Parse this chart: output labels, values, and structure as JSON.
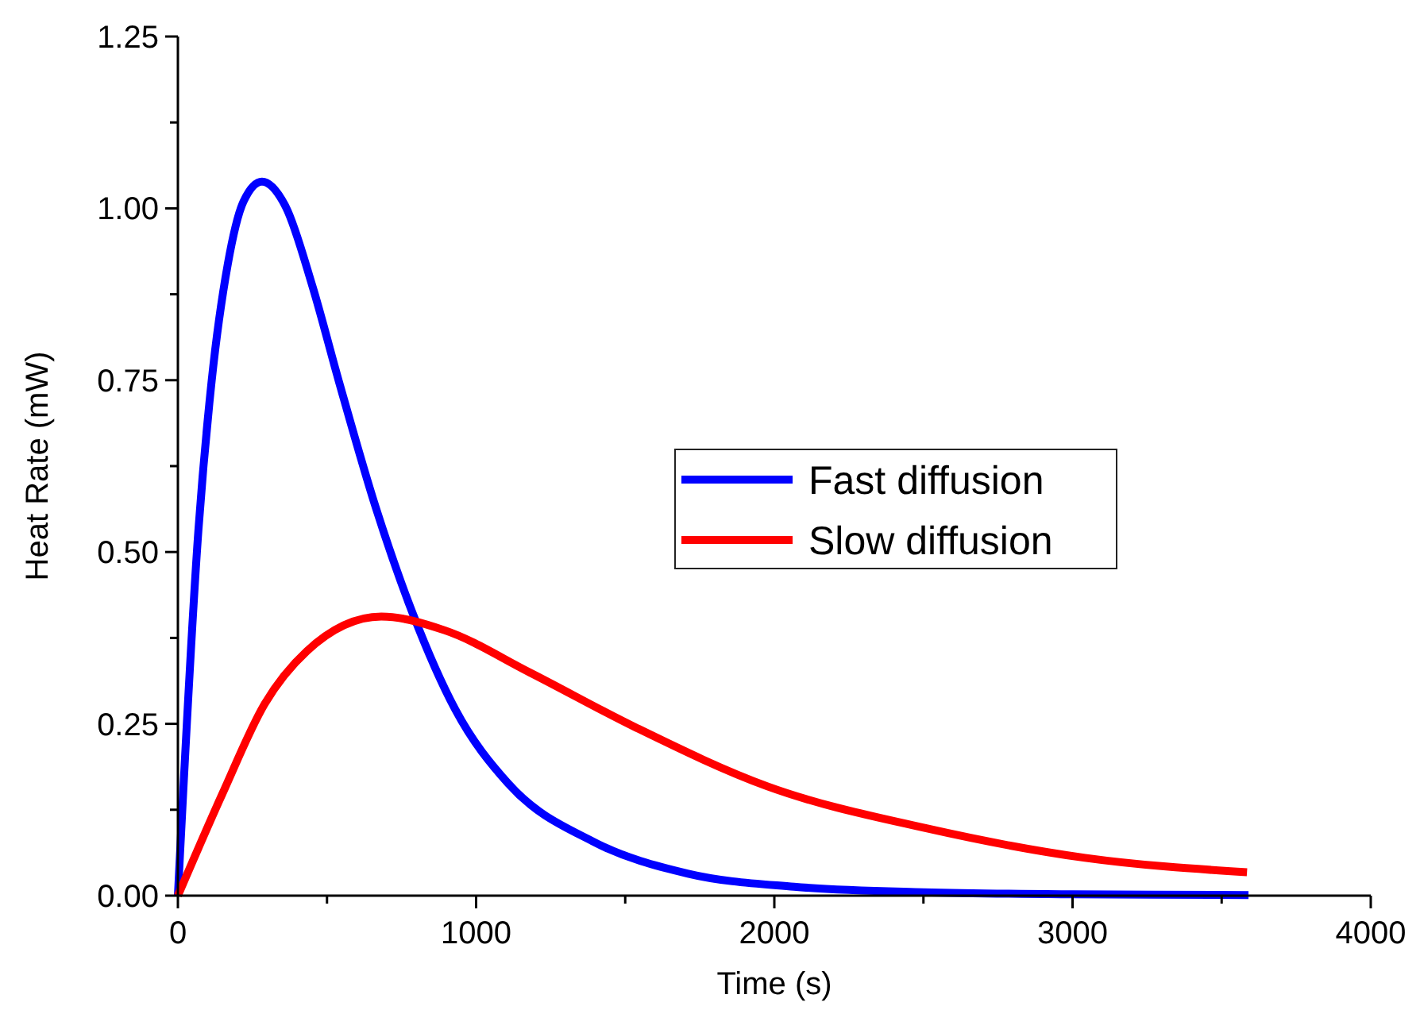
{
  "chart_data": {
    "type": "line",
    "xlabel": "Time (s)",
    "ylabel": "Heat Rate (mW)",
    "xlim": [
      0,
      4000
    ],
    "ylim": [
      0,
      1.25
    ],
    "xticks": [
      0,
      {
        "value": 500,
        "label": null
      },
      1000,
      {
        "value": 1500,
        "label": null
      },
      2000,
      {
        "value": 2500,
        "label": null
      },
      3000,
      {
        "value": 3500,
        "label": null
      },
      4000
    ],
    "yticks": [
      "0.00",
      {
        "value": 0.125,
        "label": null
      },
      0.25,
      {
        "value": 0.375,
        "label": null
      },
      "0.50",
      {
        "value": 0.625,
        "label": null
      },
      0.75,
      {
        "value": 0.875,
        "label": null
      },
      "1.00",
      {
        "value": 1.125,
        "label": null
      },
      1.25
    ],
    "legend": "right",
    "grid": false,
    "marker": "none",
    "line_style": "solid",
    "series": [
      {
        "name": "Fast diffusion",
        "color": "#0000ff",
        "x": [
          0,
          69,
          113,
          167,
          220,
          282,
          362,
          451,
          540,
          664,
          788,
          930,
          1108,
          1391,
          1711,
          2066,
          2500,
          3000,
          3590
        ],
        "values": [
          0,
          0.533,
          0.748,
          0.918,
          1.01,
          1.039,
          1.002,
          0.887,
          0.748,
          0.564,
          0.41,
          0.271,
          0.163,
          0.079,
          0.032,
          0.013,
          0.005,
          0.002,
          0.001
        ]
      },
      {
        "name": "Slow diffusion",
        "color": "#ff0000",
        "x": [
          0,
          149,
          291,
          433,
          682,
          895,
          1179,
          1534,
          1977,
          2510,
          3042,
          3585
        ],
        "values": [
          0,
          0.148,
          0.279,
          0.356,
          0.406,
          0.386,
          0.325,
          0.245,
          0.159,
          0.098,
          0.055,
          0.034
        ]
      }
    ]
  }
}
